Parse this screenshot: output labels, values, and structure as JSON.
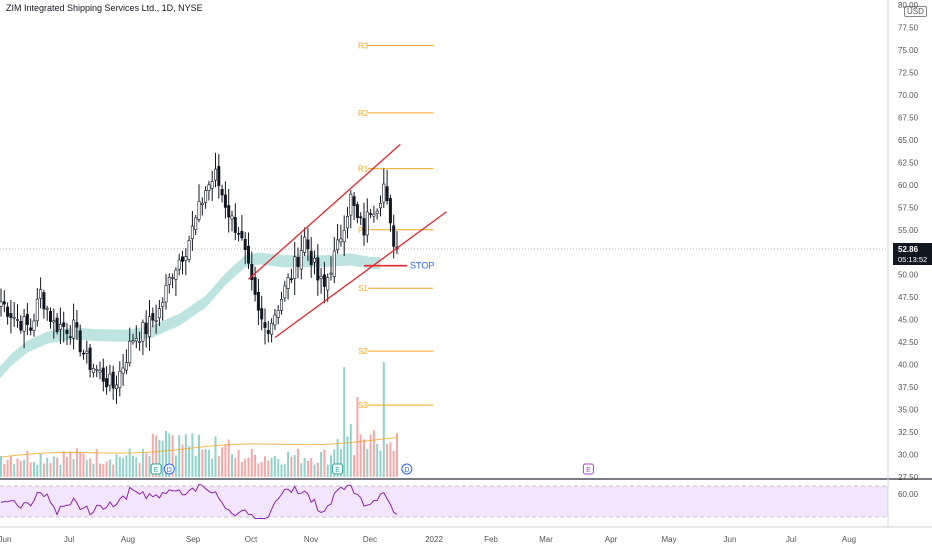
{
  "header": {
    "title": "ZIM Integrated Shipping Services Ltd., 1D, NYSE",
    "currency": "USD"
  },
  "price_badge": {
    "price": "52.86",
    "countdown": "05:13:52"
  },
  "colors": {
    "up": "#26a69a",
    "down": "#ef5350",
    "ma_band": "#b2dfdb",
    "pivot": "#f5a623",
    "channel": "#e8252c",
    "stop_text": "#2962ff",
    "rsi_line": "#8e24aa",
    "rsi_fill": "#f3e5fc",
    "badge": "#131722"
  },
  "chart_data": [
    {
      "type": "candlestick",
      "title": "ZIM Integrated Shipping Services Ltd., 1D, NYSE",
      "y_axis": {
        "min": 27.5,
        "max": 80,
        "ticks": [
          "27.50",
          "30.00",
          "32.50",
          "35.00",
          "37.50",
          "40.00",
          "42.50",
          "45.00",
          "47.50",
          "50.00",
          "55.00",
          "57.50",
          "60.00",
          "62.50",
          "65.00",
          "67.50",
          "70.00",
          "72.50",
          "75.00",
          "77.50"
        ],
        "top_label": "80.00"
      },
      "x_axis": {
        "labels": [
          "Jun",
          "Jul",
          "Aug",
          "Sep",
          "Oct",
          "Nov",
          "Dec",
          "2022",
          "Feb",
          "Mar",
          "Apr",
          "May",
          "Jun",
          "Jul",
          "Aug"
        ]
      },
      "last_price": 52.86,
      "anchors": [
        {
          "t": 0,
          "v": 47
        },
        {
          "t": 5,
          "v": 45
        },
        {
          "t": 9,
          "v": 44
        },
        {
          "t": 12,
          "v": 48
        },
        {
          "t": 16,
          "v": 44.5
        },
        {
          "t": 22,
          "v": 44
        },
        {
          "t": 26,
          "v": 40.5
        },
        {
          "t": 30,
          "v": 39
        },
        {
          "t": 34,
          "v": 37.5
        },
        {
          "t": 37,
          "v": 40
        },
        {
          "t": 40,
          "v": 43
        },
        {
          "t": 44,
          "v": 44
        },
        {
          "t": 48,
          "v": 46
        },
        {
          "t": 52,
          "v": 50.5
        },
        {
          "t": 56,
          "v": 53
        },
        {
          "t": 59,
          "v": 56
        },
        {
          "t": 62,
          "v": 59.5
        },
        {
          "t": 65,
          "v": 61
        },
        {
          "t": 68,
          "v": 58
        },
        {
          "t": 70,
          "v": 56
        },
        {
          "t": 72,
          "v": 55
        },
        {
          "t": 74,
          "v": 52
        },
        {
          "t": 76,
          "v": 48.5
        },
        {
          "t": 78,
          "v": 45.5
        },
        {
          "t": 80,
          "v": 44
        },
        {
          "t": 82,
          "v": 45
        },
        {
          "t": 85,
          "v": 47.5
        },
        {
          "t": 88,
          "v": 50
        },
        {
          "t": 92,
          "v": 54
        },
        {
          "t": 94,
          "v": 52
        },
        {
          "t": 96,
          "v": 49.5
        },
        {
          "t": 98,
          "v": 48.5
        },
        {
          "t": 100,
          "v": 51
        },
        {
          "t": 102,
          "v": 53
        },
        {
          "t": 104,
          "v": 56
        },
        {
          "t": 106,
          "v": 58.5
        },
        {
          "t": 108,
          "v": 56
        },
        {
          "t": 110,
          "v": 55
        },
        {
          "t": 112,
          "v": 57.5
        },
        {
          "t": 114,
          "v": 58
        },
        {
          "t": 116,
          "v": 60
        },
        {
          "t": 118,
          "v": 55
        },
        {
          "t": 120,
          "v": 52.86
        }
      ],
      "ma_band": {
        "label": "",
        "points": [
          [
            -8,
            35
          ],
          [
            -3,
            38
          ],
          [
            3,
            40.5
          ],
          [
            8,
            42
          ],
          [
            14,
            43
          ],
          [
            22,
            43.5
          ],
          [
            28,
            43.3
          ],
          [
            38,
            43.2
          ],
          [
            46,
            43.7
          ],
          [
            54,
            45
          ],
          [
            62,
            47
          ],
          [
            68,
            49.5
          ],
          [
            74,
            51.5
          ],
          [
            78,
            51.8
          ],
          [
            86,
            51.5
          ],
          [
            98,
            51.5
          ],
          [
            106,
            51.7
          ],
          [
            112,
            51.3
          ],
          [
            115,
            51.3
          ]
        ]
      },
      "pivots": [
        {
          "label": "R3",
          "value": 75.5
        },
        {
          "label": "R2",
          "value": 68
        },
        {
          "label": "R1",
          "value": 61.8
        },
        {
          "label": "P",
          "value": 55
        },
        {
          "label": "S1",
          "value": 48.5
        },
        {
          "label": "S2",
          "value": 41.5
        },
        {
          "label": "S3",
          "value": 35.5
        }
      ],
      "channel": {
        "upper": [
          [
            75,
            49.5
          ],
          [
            121,
            64.5
          ]
        ],
        "lower": [
          [
            83,
            43
          ],
          [
            135,
            57
          ]
        ]
      },
      "stop": {
        "label": "STOP",
        "value": 51
      },
      "events": [
        {
          "label": "E",
          "t": 47
        },
        {
          "label": "D",
          "t": 51
        },
        {
          "label": "E",
          "t": 102
        },
        {
          "label": "D",
          "t": 123
        },
        {
          "label": "E",
          "t": 178
        }
      ],
      "volume": {
        "label": "",
        "average_line": true
      }
    },
    {
      "type": "line",
      "title": "",
      "series": [
        {
          "name": "",
          "y_axis_label": "60.00",
          "range": [
            30,
            70
          ]
        }
      ]
    }
  ]
}
